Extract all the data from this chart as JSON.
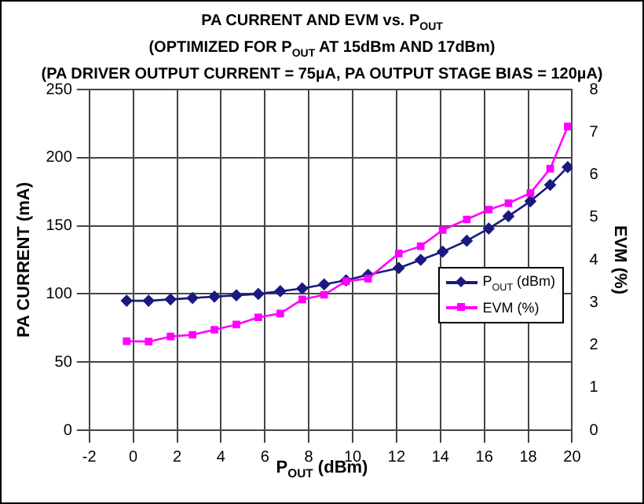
{
  "chart_data": {
    "type": "line",
    "title": "PA CURRENT AND EVM vs. P$_{OUT}$",
    "subtitle": "(OPTIMIZED FOR P$_{OUT}$ AT 15dBm AND 17dBm)\n(PA DRIVER OUTPUT CURRENT = 75µA, PA OUTPUT STAGE BIAS = 120µA)",
    "xlabel": "P$_{OUT}$ (dBm)",
    "ylabel": "PA CURRENT (mA)",
    "y2label": "EVM (%)",
    "x": [
      -0.3,
      0.7,
      1.7,
      2.7,
      3.7,
      4.7,
      5.7,
      6.7,
      7.7,
      8.7,
      9.7,
      10.7,
      12.1,
      13.1,
      14.1,
      15.2,
      16.2,
      17.1,
      18.1,
      19.0,
      19.8
    ],
    "series": [
      {
        "name": "P$_{OUT}$ (dBm)",
        "color": "#1a1a80",
        "marker": "diamond",
        "values": [
          95,
          95,
          96,
          97,
          98,
          99,
          100,
          102,
          104,
          107,
          110,
          114,
          119,
          125,
          131,
          139,
          148,
          157,
          168,
          180,
          193
        ]
      },
      {
        "name": "EVM (%)",
        "color": "#ff00ff",
        "marker": "square",
        "axis": "y2",
        "values": [
          2.09,
          2.08,
          2.2,
          2.24,
          2.36,
          2.48,
          2.65,
          2.74,
          3.07,
          3.18,
          3.5,
          3.56,
          4.15,
          4.32,
          4.7,
          4.95,
          5.18,
          5.33,
          5.57,
          6.14,
          7.13
        ]
      }
    ],
    "xlim": [
      -2,
      20
    ],
    "xticks": [
      -2,
      0,
      2,
      4,
      6,
      8,
      10,
      12,
      14,
      16,
      18,
      20
    ],
    "ylim": [
      0,
      250
    ],
    "yticks": [
      0,
      50,
      100,
      150,
      200,
      250
    ],
    "y2lim": [
      0,
      8
    ],
    "y2ticks": [
      0,
      1,
      2,
      3,
      4,
      5,
      6,
      7,
      8
    ],
    "grid": true,
    "legend": "bottom right",
    "line_style": "solid"
  }
}
